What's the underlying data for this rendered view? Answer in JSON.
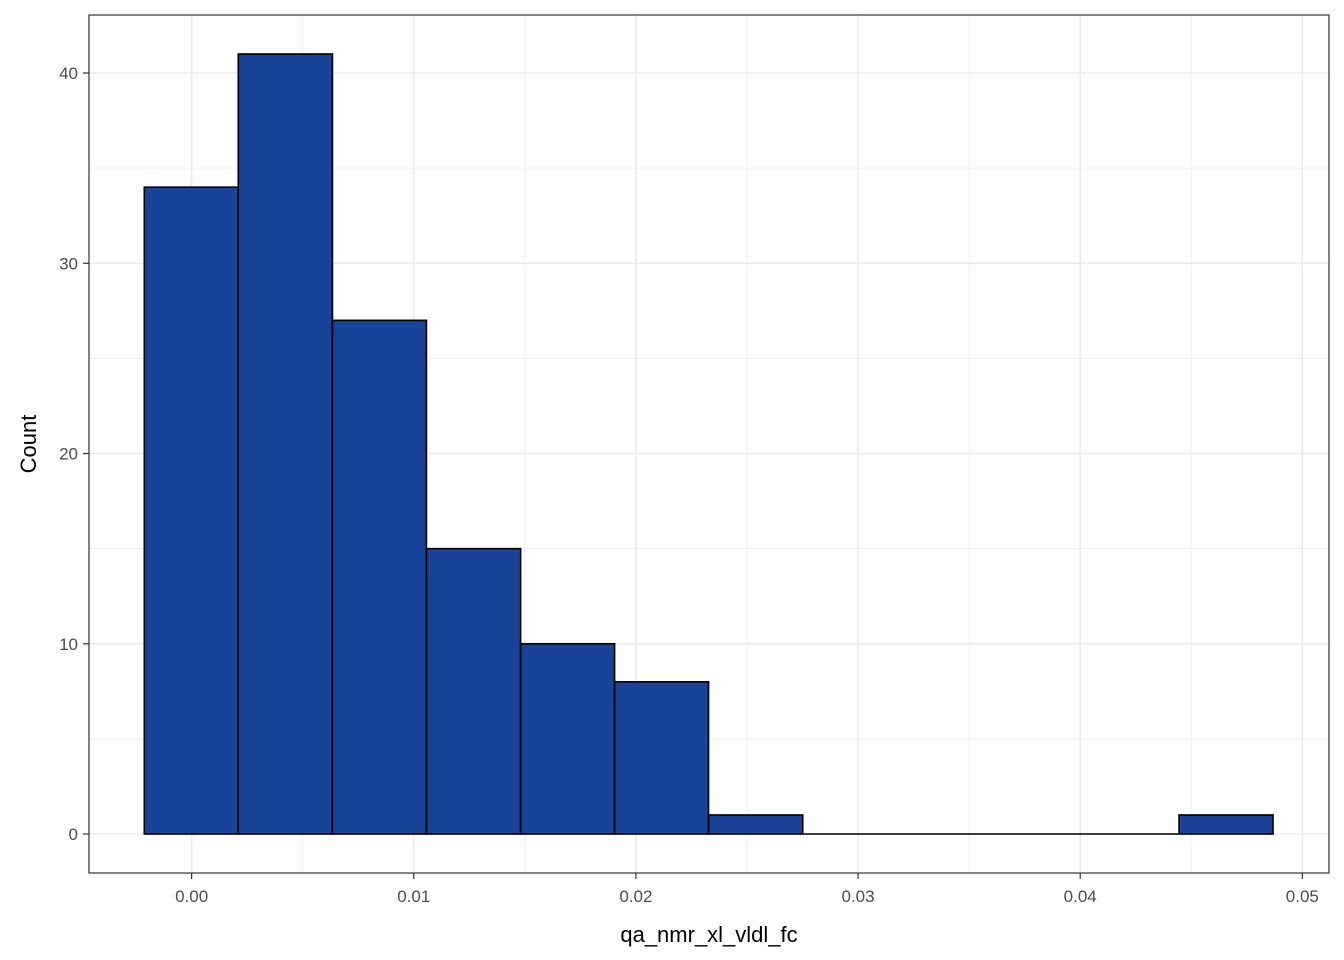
{
  "chart_data": {
    "type": "bar",
    "subtype": "histogram",
    "xlabel": "qa_nmr_xl_vldl_fc",
    "ylabel": "Count",
    "xlim": [
      -0.00462,
      0.0512
    ],
    "ylim": [
      -2.05,
      43.05
    ],
    "x_ticks": [
      0.0,
      0.01,
      0.02,
      0.03,
      0.04,
      0.05
    ],
    "x_tick_labels": [
      "0.00",
      "0.01",
      "0.02",
      "0.03",
      "0.04",
      "0.05"
    ],
    "y_ticks": [
      0,
      10,
      20,
      30,
      40
    ],
    "y_tick_labels": [
      "0",
      "10",
      "20",
      "30",
      "40"
    ],
    "bins": [
      {
        "x0": -0.00213,
        "x1": 0.0021,
        "count": 34
      },
      {
        "x0": 0.0021,
        "x1": 0.00634,
        "count": 41
      },
      {
        "x0": 0.00634,
        "x1": 0.01057,
        "count": 27
      },
      {
        "x0": 0.01057,
        "x1": 0.01481,
        "count": 15
      },
      {
        "x0": 0.01481,
        "x1": 0.01904,
        "count": 10
      },
      {
        "x0": 0.01904,
        "x1": 0.02327,
        "count": 8
      },
      {
        "x0": 0.02327,
        "x1": 0.02751,
        "count": 1
      },
      {
        "x0": 0.02751,
        "x1": 0.03174,
        "count": 0
      },
      {
        "x0": 0.03174,
        "x1": 0.03598,
        "count": 0
      },
      {
        "x0": 0.03598,
        "x1": 0.04021,
        "count": 0
      },
      {
        "x0": 0.04021,
        "x1": 0.04445,
        "count": 0
      },
      {
        "x0": 0.04445,
        "x1": 0.04868,
        "count": 1
      }
    ],
    "fill_color": "#184399",
    "edge_color": "#000000",
    "grid": true,
    "grid_color": "#ebebeb",
    "panel_border_color": "#333333",
    "legend": "none"
  }
}
